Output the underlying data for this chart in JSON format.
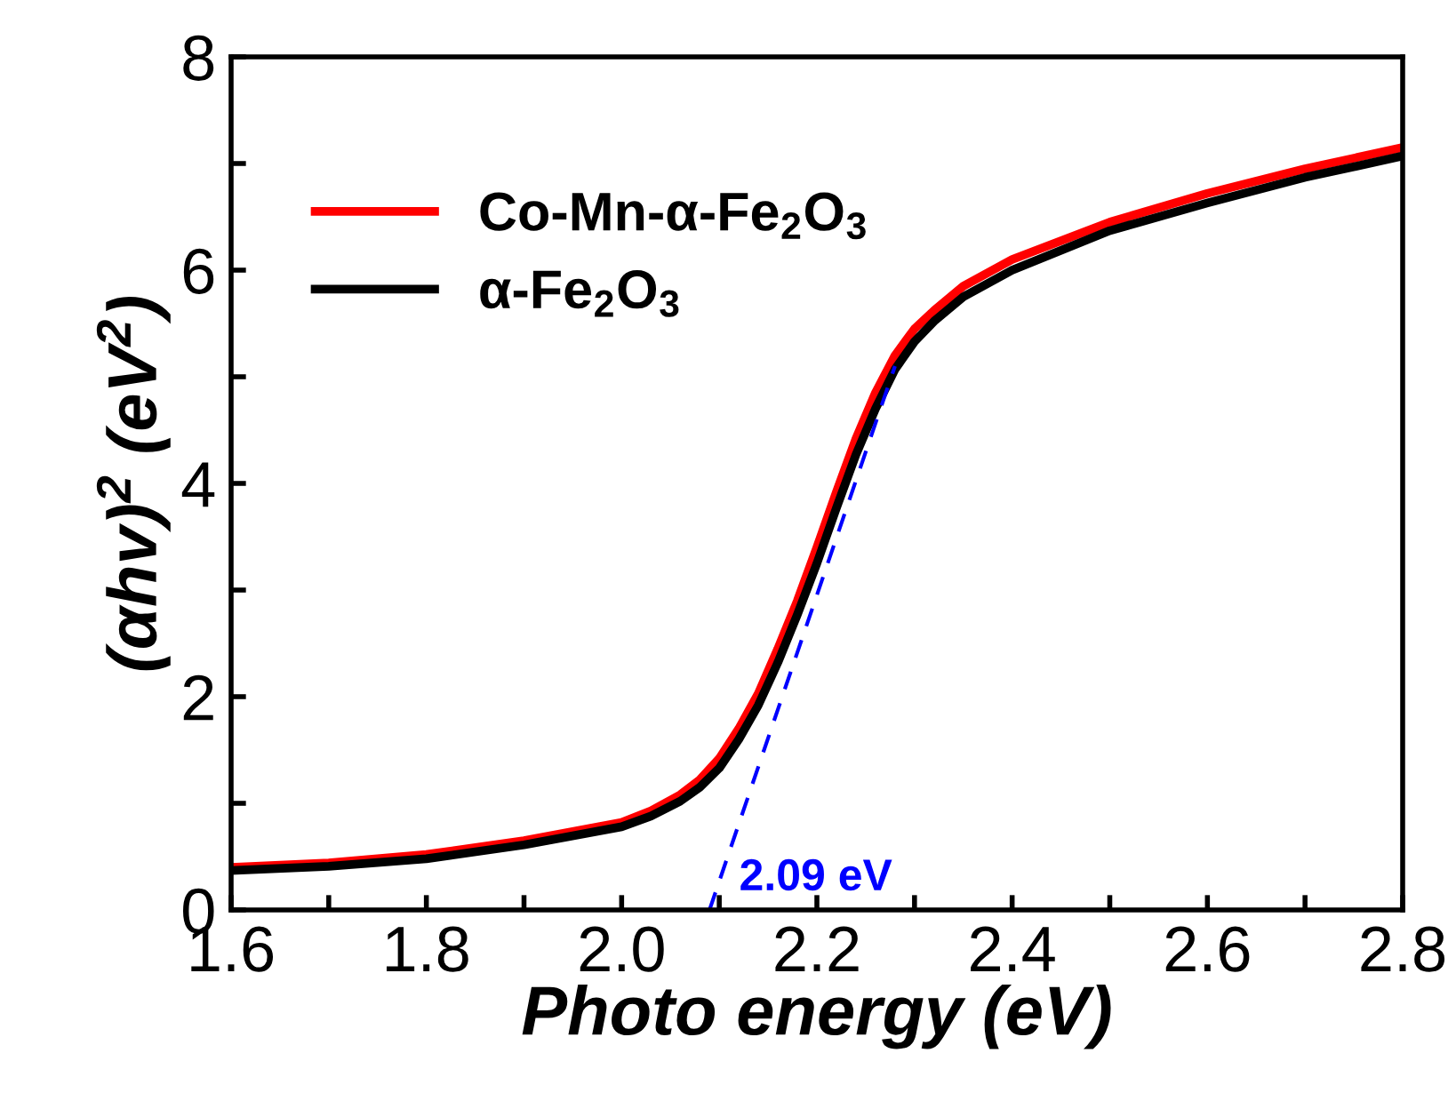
{
  "chart_data": {
    "type": "line",
    "xlabel": "Photo energy (eV)",
    "ylabel": "(αhv)$^{2}$ (eV$^{2}$)",
    "xlim": [
      1.6,
      2.8
    ],
    "ylim": [
      0,
      8
    ],
    "xticks": [
      1.6,
      {
        "value": 1.7,
        "label": null
      },
      1.8,
      {
        "value": 1.9,
        "label": null
      },
      {
        "value": 2.0,
        "label": "2.0"
      },
      {
        "value": 2.1,
        "label": null
      },
      2.2,
      {
        "value": 2.3,
        "label": null
      },
      2.4,
      {
        "value": 2.5,
        "label": null
      },
      2.6,
      {
        "value": 2.7,
        "label": null
      },
      2.8
    ],
    "yticks": [
      0,
      {
        "value": 1,
        "label": null
      },
      2,
      {
        "value": 3,
        "label": null
      },
      4,
      {
        "value": 5,
        "label": null
      },
      6,
      {
        "value": 7,
        "label": null
      },
      8
    ],
    "grid": false,
    "legend": "top left",
    "line_style": "solid",
    "series": [
      {
        "name": "Co-Mn-α-Fe$_{2}$O$_{3}$",
        "color": "#ff0000",
        "x": [
          1.6,
          1.7,
          1.8,
          1.9,
          2.0,
          2.03,
          2.06,
          2.08,
          2.1,
          2.12,
          2.14,
          2.16,
          2.18,
          2.2,
          2.22,
          2.24,
          2.26,
          2.28,
          2.3,
          2.32,
          2.35,
          2.4,
          2.5,
          2.6,
          2.7,
          2.8
        ],
        "values": [
          0.4,
          0.44,
          0.52,
          0.65,
          0.82,
          0.93,
          1.08,
          1.22,
          1.42,
          1.7,
          2.03,
          2.45,
          2.9,
          3.4,
          3.92,
          4.42,
          4.85,
          5.2,
          5.45,
          5.62,
          5.85,
          6.1,
          6.45,
          6.72,
          6.95,
          7.15
        ]
      },
      {
        "name": "α-Fe$_{2}$O$_{3}$",
        "color": "#000000",
        "x": [
          1.6,
          1.7,
          1.8,
          1.9,
          2.0,
          2.03,
          2.06,
          2.08,
          2.1,
          2.12,
          2.14,
          2.16,
          2.18,
          2.2,
          2.22,
          2.24,
          2.26,
          2.28,
          2.3,
          2.32,
          2.35,
          2.4,
          2.5,
          2.6,
          2.7,
          2.8
        ],
        "values": [
          0.37,
          0.41,
          0.48,
          0.61,
          0.78,
          0.88,
          1.02,
          1.15,
          1.33,
          1.6,
          1.92,
          2.32,
          2.77,
          3.25,
          3.77,
          4.27,
          4.7,
          5.07,
          5.33,
          5.52,
          5.75,
          6.0,
          6.37,
          6.63,
          6.87,
          7.07
        ]
      },
      {
        "type": "line",
        "color": "#0000ff",
        "line_style": "dashed",
        "x": [
          2.09,
          2.28
        ],
        "values": [
          0,
          5.1
        ]
      }
    ],
    "annotations": [
      {
        "text": "2.09 eV",
        "x": 2.09,
        "y": 0
      }
    ]
  }
}
